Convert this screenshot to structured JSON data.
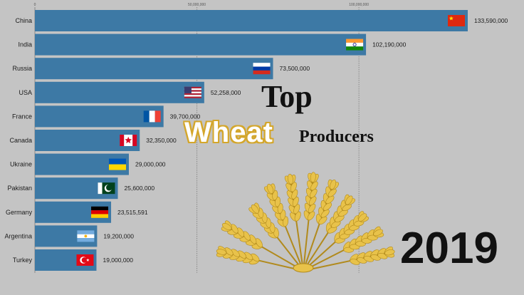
{
  "headline": {
    "top": "Top",
    "wheat": "Wheat",
    "producers": "Producers"
  },
  "year": "2019",
  "wheat_icon": "wheat-bundle-icon",
  "colors": {
    "background": "#c4c4c4",
    "bar": "#3d79a5",
    "gridline": "#8a8a8a",
    "wheat": "#e8c24a"
  },
  "chart_data": {
    "type": "bar",
    "orientation": "horizontal",
    "categories": [
      "China",
      "India",
      "Russia",
      "USA",
      "France",
      "Canada",
      "Ukraine",
      "Pakistan",
      "Germany",
      "Argentina",
      "Turkey"
    ],
    "values": [
      133590000,
      102190000,
      73500000,
      52258000,
      39700000,
      32350000,
      29000000,
      25600000,
      23515591,
      19200000,
      19000000
    ],
    "value_labels": [
      "133,590,000",
      "102,190,000",
      "73,500,000",
      "52,258,000",
      "39,700,000",
      "32,350,000",
      "29,000,000",
      "25,600,000",
      "23,515,591",
      "19,200,000",
      "19,000,000"
    ],
    "flags": [
      "china-flag-icon",
      "india-flag-icon",
      "russia-flag-icon",
      "usa-flag-icon",
      "france-flag-icon",
      "canada-flag-icon",
      "ukraine-flag-icon",
      "pakistan-flag-icon",
      "germany-flag-icon",
      "argentina-flag-icon",
      "turkey-flag-icon"
    ],
    "xticks": [
      0,
      50000000,
      100000000
    ],
    "xtick_labels": [
      "0",
      "50,000,000",
      "100,000,000"
    ],
    "xlim": [
      0,
      133590000
    ],
    "grid": true,
    "title": "",
    "xlabel": "",
    "ylabel": ""
  }
}
